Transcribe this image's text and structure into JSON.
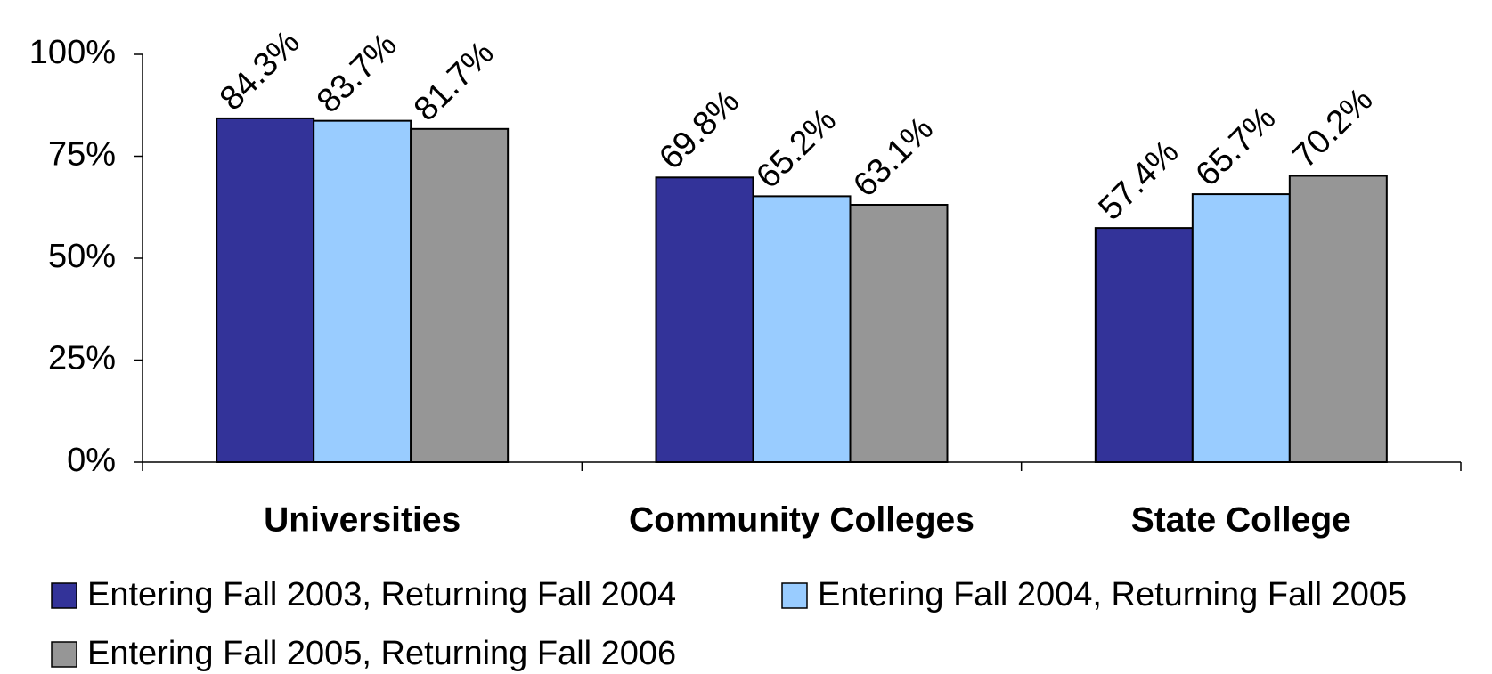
{
  "chart_data": {
    "type": "bar",
    "categories": [
      "Universities",
      "Community Colleges",
      "State College"
    ],
    "series": [
      {
        "name": "Entering Fall 2003, Returning Fall 2004",
        "color": "#333399",
        "values": [
          84.3,
          69.8,
          57.4
        ],
        "value_labels": [
          "84.3%",
          "69.8%",
          "57.4%"
        ]
      },
      {
        "name": "Entering Fall 2004, Returning Fall 2005",
        "color": "#99ccff",
        "values": [
          83.7,
          65.2,
          65.7
        ],
        "value_labels": [
          "83.7%",
          "65.2%",
          "65.7%"
        ]
      },
      {
        "name": "Entering Fall 2005, Returning Fall 2006",
        "color": "#969696",
        "values": [
          81.7,
          63.1,
          70.2
        ],
        "value_labels": [
          "81.7%",
          "63.1%",
          "70.2%"
        ]
      }
    ],
    "ylim": [
      0,
      100
    ],
    "yticks": [
      {
        "value": 0,
        "label": "0%"
      },
      {
        "value": 25,
        "label": "25%"
      },
      {
        "value": 50,
        "label": "50%"
      },
      {
        "value": 75,
        "label": "75%"
      },
      {
        "value": 100,
        "label": "100%"
      }
    ],
    "grid": false,
    "legend": "bottom"
  }
}
